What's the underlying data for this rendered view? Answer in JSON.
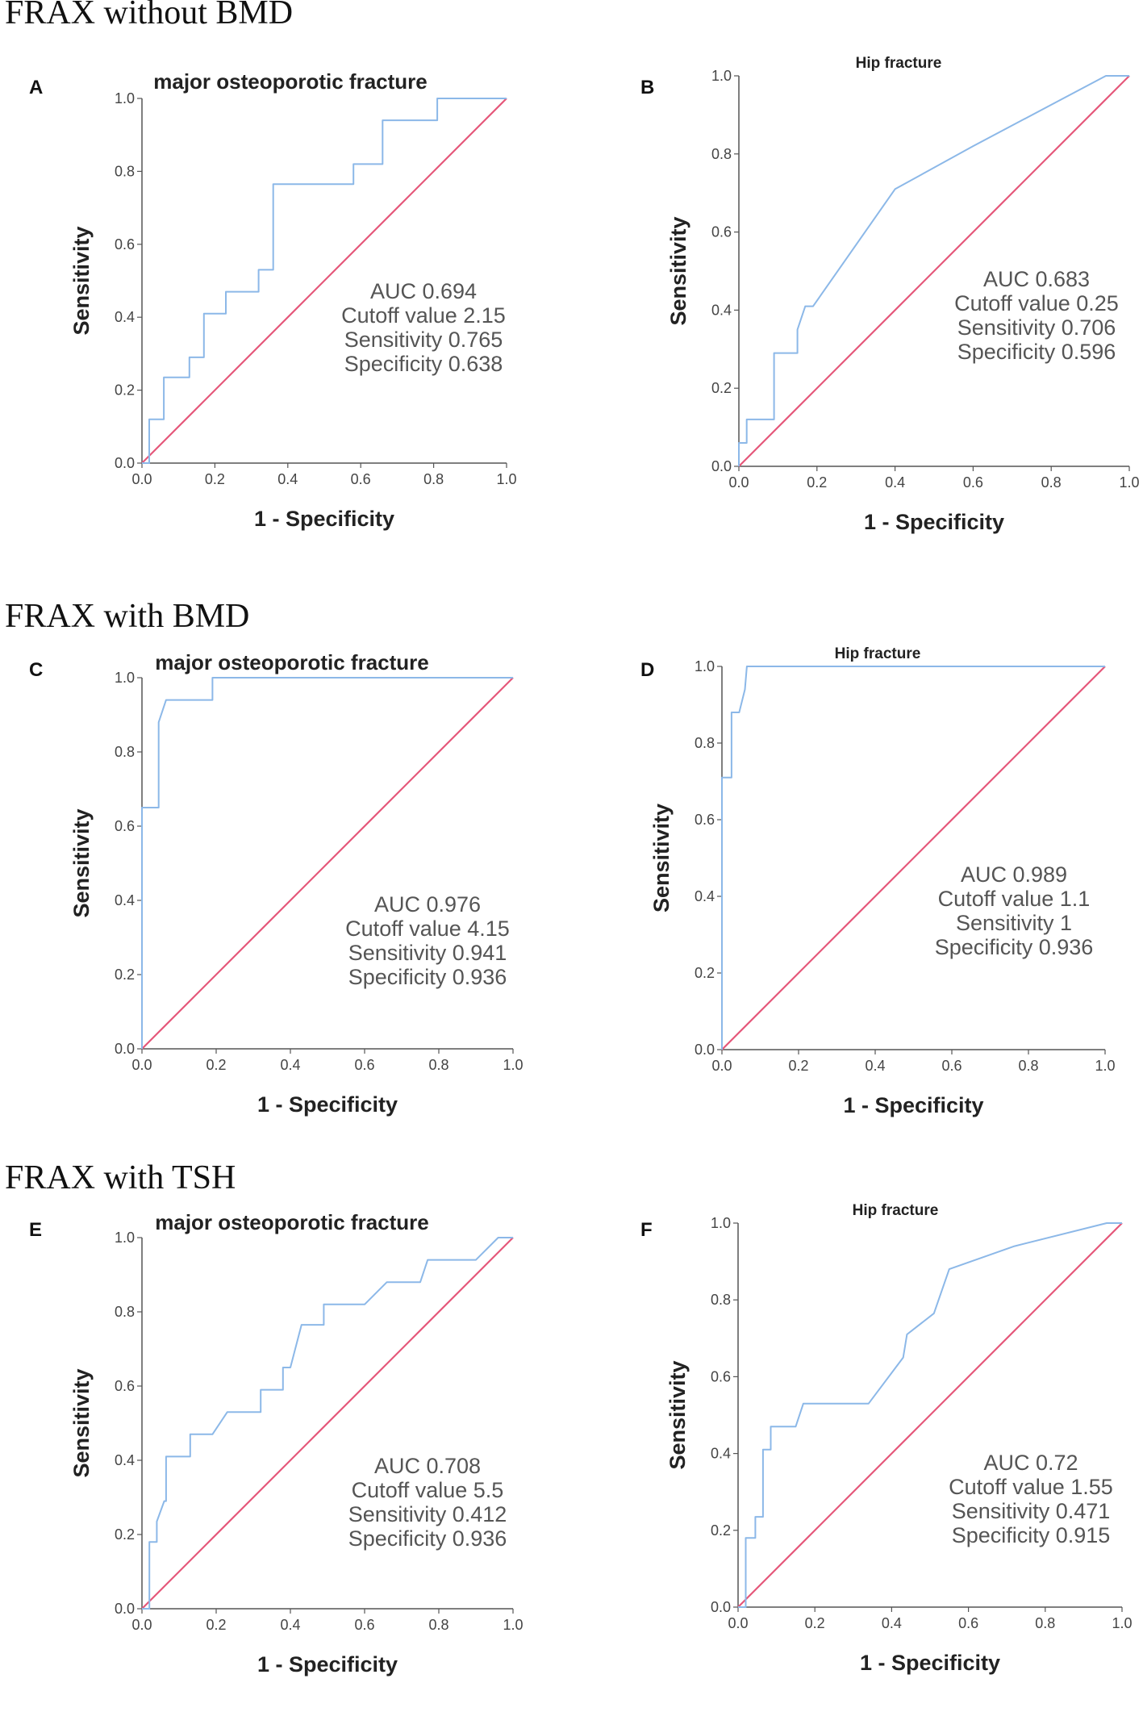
{
  "sections": [
    {
      "title": "FRAX without BMD"
    },
    {
      "title": "FRAX with BMD"
    },
    {
      "title": "FRAX with TSH"
    }
  ],
  "chart_data": [
    {
      "type": "line",
      "panel": "A",
      "title": "major osteoporotic fracture",
      "xlabel": "1 - Specificity",
      "ylabel": "Sensitivity",
      "xlim": [
        0,
        1
      ],
      "ylim": [
        0,
        1
      ],
      "xticks": [
        "0.0",
        "0.2",
        "0.4",
        "0.6",
        "0.8",
        "1.0"
      ],
      "yticks": [
        "0.0",
        "0.2",
        "0.4",
        "0.6",
        "0.8",
        "1.0"
      ],
      "series": [
        {
          "name": "ROC",
          "color": "#8cb8e8",
          "x": [
            0,
            0.02,
            0.02,
            0.06,
            0.06,
            0.13,
            0.13,
            0.17,
            0.17,
            0.19,
            0.19,
            0.23,
            0.23,
            0.3,
            0.3,
            0.32,
            0.32,
            0.36,
            0.36,
            0.58,
            0.58,
            0.62,
            0.62,
            0.66,
            0.66,
            0.77,
            0.77,
            0.81,
            0.81,
            1.0
          ],
          "y": [
            0,
            0,
            0.12,
            0.12,
            0.235,
            0.235,
            0.29,
            0.29,
            0.41,
            0.41,
            0.41,
            0.41,
            0.47,
            0.47,
            0.47,
            0.47,
            0.53,
            0.53,
            0.765,
            0.765,
            0.82,
            0.82,
            0.82,
            0.82,
            0.94,
            0.94,
            0.94,
            0.94,
            1.0,
            1.0
          ]
        },
        {
          "name": "Reference",
          "color": "#e5577a",
          "x": [
            0,
            1
          ],
          "y": [
            0,
            1
          ]
        }
      ],
      "annotations": [
        "AUC 0.694",
        "Cutoff value 2.15",
        "Sensitivity 0.765",
        "Specificity 0.638"
      ]
    },
    {
      "type": "line",
      "panel": "B",
      "title": "Hip fracture",
      "xlabel": "1 - Specificity",
      "ylabel": "Sensitivity",
      "xlim": [
        0,
        1
      ],
      "ylim": [
        0,
        1
      ],
      "xticks": [
        "0.0",
        "0.2",
        "0.4",
        "0.6",
        "0.8",
        "1.0"
      ],
      "yticks": [
        "0.0",
        "0.2",
        "0.4",
        "0.6",
        "0.8",
        "1.0"
      ],
      "series": [
        {
          "name": "ROC",
          "color": "#8cb8e8",
          "x": [
            0,
            0,
            0.02,
            0.02,
            0.09,
            0.09,
            0.15,
            0.15,
            0.17,
            0.19,
            0.4,
            0.6,
            0.94,
            1.0
          ],
          "y": [
            0,
            0.06,
            0.06,
            0.12,
            0.12,
            0.29,
            0.29,
            0.35,
            0.41,
            0.41,
            0.71,
            0.82,
            1.0,
            1.0
          ]
        },
        {
          "name": "Reference",
          "color": "#e5577a",
          "x": [
            0,
            1
          ],
          "y": [
            0,
            1
          ]
        }
      ],
      "annotations": [
        "AUC 0.683",
        "Cutoff value 0.25",
        "Sensitivity 0.706",
        "Specificity 0.596"
      ]
    },
    {
      "type": "line",
      "panel": "C",
      "title": "major osteoporotic fracture",
      "xlabel": "1 - Specificity",
      "ylabel": "Sensitivity",
      "xlim": [
        0,
        1
      ],
      "ylim": [
        0,
        1
      ],
      "xticks": [
        "0.0",
        "0.2",
        "0.4",
        "0.6",
        "0.8",
        "1.0"
      ],
      "yticks": [
        "0.0",
        "0.2",
        "0.4",
        "0.6",
        "0.8",
        "1.0"
      ],
      "series": [
        {
          "name": "ROC",
          "color": "#8cb8e8",
          "x": [
            0,
            0,
            0.045,
            0.045,
            0.065,
            0.19,
            0.19,
            1.0
          ],
          "y": [
            0,
            0.65,
            0.65,
            0.88,
            0.94,
            0.94,
            1.0,
            1.0
          ]
        },
        {
          "name": "Reference",
          "color": "#e5577a",
          "x": [
            0,
            1
          ],
          "y": [
            0,
            1
          ]
        }
      ],
      "annotations": [
        "AUC 0.976",
        "Cutoff value 4.15",
        "Sensitivity 0.941",
        "Specificity 0.936"
      ]
    },
    {
      "type": "line",
      "panel": "D",
      "title": "Hip fracture",
      "xlabel": "1 - Specificity",
      "ylabel": "Sensitivity",
      "xlim": [
        0,
        1
      ],
      "ylim": [
        0,
        1
      ],
      "xticks": [
        "0.0",
        "0.2",
        "0.4",
        "0.6",
        "0.8",
        "1.0"
      ],
      "yticks": [
        "0.0",
        "0.2",
        "0.4",
        "0.6",
        "0.8",
        "1.0"
      ],
      "series": [
        {
          "name": "ROC",
          "color": "#8cb8e8",
          "x": [
            0,
            0,
            0.025,
            0.025,
            0.045,
            0.06,
            0.065,
            1.0
          ],
          "y": [
            0,
            0.71,
            0.71,
            0.88,
            0.88,
            0.94,
            1.0,
            1.0
          ]
        },
        {
          "name": "Reference",
          "color": "#e5577a",
          "x": [
            0,
            1
          ],
          "y": [
            0,
            1
          ]
        }
      ],
      "annotations": [
        "AUC 0.989",
        "Cutoff value 1.1",
        "Sensitivity 1",
        "Specificity 0.936"
      ]
    },
    {
      "type": "line",
      "panel": "E",
      "title": "major osteoporotic fracture",
      "xlabel": "1 - Specificity",
      "ylabel": "Sensitivity",
      "xlim": [
        0,
        1
      ],
      "ylim": [
        0,
        1
      ],
      "xticks": [
        "0.0",
        "0.2",
        "0.4",
        "0.6",
        "0.8",
        "1.0"
      ],
      "yticks": [
        "0.0",
        "0.2",
        "0.4",
        "0.6",
        "0.8",
        "1.0"
      ],
      "series": [
        {
          "name": "ROC",
          "color": "#8cb8e8",
          "x": [
            0,
            0.02,
            0.02,
            0.04,
            0.04,
            0.06,
            0.065,
            0.065,
            0.13,
            0.13,
            0.19,
            0.23,
            0.32,
            0.32,
            0.38,
            0.38,
            0.4,
            0.43,
            0.43,
            0.49,
            0.49,
            0.6,
            0.66,
            0.66,
            0.75,
            0.77,
            0.77,
            0.9,
            0.96,
            1.0
          ],
          "y": [
            0,
            0,
            0.18,
            0.18,
            0.235,
            0.29,
            0.29,
            0.41,
            0.41,
            0.47,
            0.47,
            0.53,
            0.53,
            0.59,
            0.59,
            0.65,
            0.65,
            0.765,
            0.765,
            0.765,
            0.82,
            0.82,
            0.88,
            0.88,
            0.88,
            0.94,
            0.94,
            0.94,
            1.0,
            1.0
          ]
        },
        {
          "name": "Reference",
          "color": "#e5577a",
          "x": [
            0,
            1
          ],
          "y": [
            0,
            1
          ]
        }
      ],
      "annotations": [
        "AUC 0.708",
        "Cutoff value 5.5",
        "Sensitivity 0.412",
        "Specificity 0.936"
      ]
    },
    {
      "type": "line",
      "panel": "F",
      "title": "Hip fracture",
      "xlabel": "1 - Specificity",
      "ylabel": "Sensitivity",
      "xlim": [
        0,
        1
      ],
      "ylim": [
        0,
        1
      ],
      "xticks": [
        "0.0",
        "0.2",
        "0.4",
        "0.6",
        "0.8",
        "1.0"
      ],
      "yticks": [
        "0.0",
        "0.2",
        "0.4",
        "0.6",
        "0.8",
        "1.0"
      ],
      "series": [
        {
          "name": "ROC",
          "color": "#8cb8e8",
          "x": [
            0,
            0.02,
            0.02,
            0.045,
            0.045,
            0.065,
            0.065,
            0.085,
            0.085,
            0.15,
            0.17,
            0.34,
            0.43,
            0.44,
            0.51,
            0.55,
            0.72,
            0.96,
            1.0
          ],
          "y": [
            0,
            0,
            0.18,
            0.18,
            0.235,
            0.235,
            0.41,
            0.41,
            0.47,
            0.47,
            0.53,
            0.53,
            0.65,
            0.71,
            0.765,
            0.88,
            0.94,
            1.0,
            1.0
          ]
        },
        {
          "name": "Reference",
          "color": "#e5577a",
          "x": [
            0,
            1
          ],
          "y": [
            0,
            1
          ]
        }
      ],
      "annotations": [
        "AUC 0.72",
        "Cutoff value 1.55",
        "Sensitivity 0.471",
        "Specificity 0.915"
      ]
    }
  ]
}
